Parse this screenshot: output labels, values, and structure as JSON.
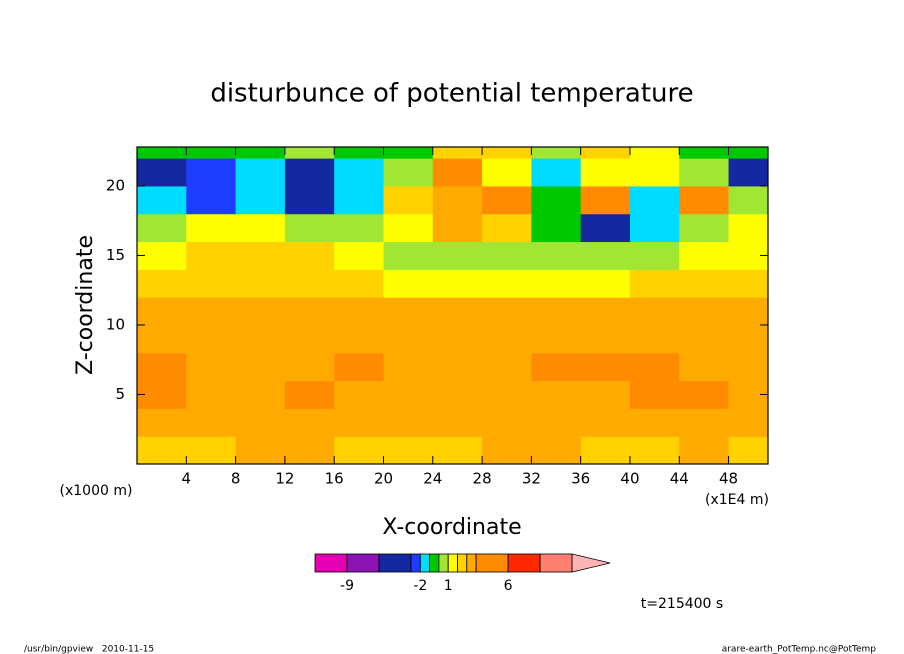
{
  "chart_data": {
    "type": "contour",
    "title": "disturbunce of potential temperature",
    "xlabel": "X-coordinate",
    "ylabel": "Z-coordinate",
    "x_unit": "(x1E4 m)",
    "y_unit": "(x1000 m)",
    "xlim": [
      0,
      51.2
    ],
    "ylim": [
      0,
      22.8
    ],
    "xticks": [
      4,
      8,
      12,
      16,
      20,
      24,
      28,
      32,
      36,
      40,
      44,
      48
    ],
    "yticks": [
      5,
      10,
      15,
      20
    ],
    "x": [
      2,
      6,
      10,
      14,
      18,
      22,
      26,
      30,
      34,
      38,
      42,
      46,
      50
    ],
    "y": [
      1,
      3,
      5,
      7,
      9,
      11,
      13,
      15,
      17,
      19,
      21,
      23
    ],
    "values": [
      [
        2.5,
        2.5,
        3,
        3,
        2.5,
        2.5,
        2.5,
        3,
        3,
        2.5,
        2.5,
        3,
        2.5
      ],
      [
        3,
        3,
        3,
        3.5,
        3,
        3,
        3,
        3,
        3,
        3,
        3,
        3.5,
        3
      ],
      [
        4.5,
        3.5,
        3.5,
        4.5,
        3.5,
        3.5,
        3.5,
        3.5,
        3.5,
        3.5,
        4,
        4,
        3.5
      ],
      [
        4.5,
        3.5,
        3.5,
        3.5,
        4.5,
        3.5,
        3.5,
        3.5,
        4.5,
        4.5,
        4.5,
        3.5,
        3.5
      ],
      [
        3.5,
        3.5,
        3.5,
        3.5,
        3.5,
        3.5,
        3.5,
        3.5,
        3.5,
        3.5,
        3.5,
        3.5,
        3.5
      ],
      [
        3.5,
        3.5,
        3.5,
        3.5,
        3.5,
        3,
        3,
        3,
        3,
        3,
        3,
        3,
        3
      ],
      [
        2.5,
        2.5,
        2.5,
        2.5,
        2,
        1.5,
        1.5,
        1.5,
        1.5,
        1.5,
        2,
        2,
        2
      ],
      [
        1.5,
        2.5,
        2.5,
        2,
        1,
        0.5,
        0.5,
        0.5,
        0.5,
        0.5,
        0.5,
        1,
        1.5
      ],
      [
        0.5,
        1.5,
        1.5,
        0.5,
        0.5,
        1.5,
        3,
        2,
        -0.5,
        -4,
        -2,
        0.5,
        1
      ],
      [
        -1.5,
        -2.5,
        -1.5,
        -4,
        -1.5,
        2,
        3,
        5,
        -0.5,
        5,
        -1.5,
        5,
        0.5
      ],
      [
        -4,
        -2.5,
        -1.5,
        -4,
        -1.5,
        0.5,
        5,
        1,
        -1.5,
        1,
        1.5,
        0.5,
        -4
      ],
      [
        -0.5,
        -0.5,
        -0.5,
        0.5,
        -0.5,
        -0.5,
        2,
        2,
        0.5,
        2,
        1.5,
        -0.5,
        -0.5
      ]
    ],
    "levels": [
      -12,
      -9,
      -6,
      -3,
      -2,
      -1,
      0,
      1,
      2,
      3,
      4,
      6,
      8,
      10
    ],
    "colors": [
      "#e600b4",
      "#8c14b4",
      "#1428a0",
      "#1e3cff",
      "#00dcff",
      "#00c800",
      "#a0e632",
      "#ffff00",
      "#ffd200",
      "#ffaa00",
      "#ff8c00",
      "#ff2800",
      "#ff8070"
    ],
    "extend_color": "#ffb4b4",
    "colorbar_ticks": [
      -9,
      -2,
      1,
      6
    ],
    "time_label": "t=215400 s",
    "footer_left": "/usr/bin/gpview   2010-11-15",
    "footer_right": "arare-earth_PotTemp.nc@PotTemp"
  }
}
